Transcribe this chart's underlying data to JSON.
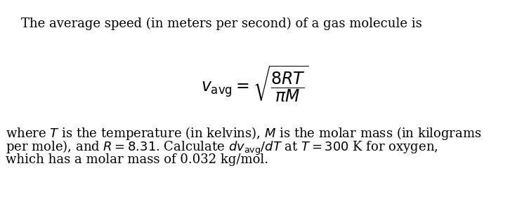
{
  "title_text": "The average speed (in meters per second) of a gas molecule is",
  "line1": "where $T$ is the temperature (in kelvins), $M$ is the molar mass (in kilograms",
  "line2": "per mole), and $R = 8.31$. Calculate $dv_{\\mathrm{avg}}/dT$ at $T = 300$ K for oxygen,",
  "line3": "which has a molar mass of 0.032 kg/mol.",
  "formula": "$v_{\\mathrm{avg}} = \\sqrt{\\dfrac{8RT}{\\pi M}}$",
  "background_color": "#ffffff",
  "text_color": "#000000",
  "title_fontsize": 13.0,
  "body_fontsize": 13.0,
  "formula_fontsize": 17
}
